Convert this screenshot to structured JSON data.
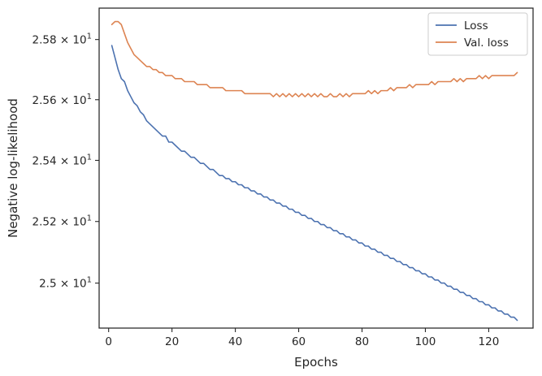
{
  "chart_data": {
    "type": "line",
    "xlabel": "Epochs",
    "ylabel": "Negative log-likelihood",
    "yscale": "log",
    "grid": false,
    "legend_position": "top-right",
    "xlim": [
      -3,
      134
    ],
    "ylim": [
      24.855,
      25.905
    ],
    "x_ticks": [
      0,
      20,
      40,
      60,
      80,
      100,
      120
    ],
    "y_ticks": [
      {
        "value": 25.0,
        "mantissa": "2.5",
        "exp": "1",
        "label": "2.5 × 10^1"
      },
      {
        "value": 25.2,
        "mantissa": "2.52",
        "exp": "1",
        "label": "2.52 × 10^1"
      },
      {
        "value": 25.4,
        "mantissa": "2.54",
        "exp": "1",
        "label": "2.54 × 10^1"
      },
      {
        "value": 25.6,
        "mantissa": "2.56",
        "exp": "1",
        "label": "2.56 × 10^1"
      },
      {
        "value": 25.8,
        "mantissa": "2.58",
        "exp": "1",
        "label": "2.58 × 10^1"
      }
    ],
    "x": [
      1,
      2,
      3,
      4,
      5,
      6,
      7,
      8,
      9,
      10,
      11,
      12,
      13,
      14,
      15,
      16,
      17,
      18,
      19,
      20,
      21,
      22,
      23,
      24,
      25,
      26,
      27,
      28,
      29,
      30,
      31,
      32,
      33,
      34,
      35,
      36,
      37,
      38,
      39,
      40,
      41,
      42,
      43,
      44,
      45,
      46,
      47,
      48,
      49,
      50,
      51,
      52,
      53,
      54,
      55,
      56,
      57,
      58,
      59,
      60,
      61,
      62,
      63,
      64,
      65,
      66,
      67,
      68,
      69,
      70,
      71,
      72,
      73,
      74,
      75,
      76,
      77,
      78,
      79,
      80,
      81,
      82,
      83,
      84,
      85,
      86,
      87,
      88,
      89,
      90,
      91,
      92,
      93,
      94,
      95,
      96,
      97,
      98,
      99,
      100,
      101,
      102,
      103,
      104,
      105,
      106,
      107,
      108,
      109,
      110,
      111,
      112,
      113,
      114,
      115,
      116,
      117,
      118,
      119,
      120,
      121,
      122,
      123,
      124,
      125,
      126,
      127,
      128,
      129
    ],
    "series": [
      {
        "name": "Loss",
        "color": "#4c72b0",
        "values": [
          25.78,
          25.74,
          25.7,
          25.67,
          25.66,
          25.63,
          25.61,
          25.59,
          25.58,
          25.56,
          25.55,
          25.53,
          25.52,
          25.51,
          25.5,
          25.49,
          25.48,
          25.48,
          25.46,
          25.46,
          25.45,
          25.44,
          25.43,
          25.43,
          25.42,
          25.41,
          25.41,
          25.4,
          25.39,
          25.39,
          25.38,
          25.37,
          25.37,
          25.36,
          25.35,
          25.35,
          25.34,
          25.34,
          25.33,
          25.33,
          25.32,
          25.32,
          25.31,
          25.31,
          25.3,
          25.3,
          25.29,
          25.29,
          25.28,
          25.28,
          25.27,
          25.27,
          25.26,
          25.26,
          25.25,
          25.25,
          25.24,
          25.24,
          25.23,
          25.23,
          25.22,
          25.22,
          25.21,
          25.21,
          25.2,
          25.2,
          25.19,
          25.19,
          25.18,
          25.18,
          25.17,
          25.17,
          25.16,
          25.16,
          25.15,
          25.15,
          25.14,
          25.14,
          25.13,
          25.13,
          25.12,
          25.12,
          25.11,
          25.11,
          25.1,
          25.1,
          25.09,
          25.09,
          25.08,
          25.08,
          25.07,
          25.07,
          25.06,
          25.06,
          25.05,
          25.05,
          25.04,
          25.04,
          25.03,
          25.03,
          25.02,
          25.02,
          25.01,
          25.01,
          25.0,
          25.0,
          24.99,
          24.99,
          24.98,
          24.98,
          24.97,
          24.97,
          24.96,
          24.96,
          24.95,
          24.95,
          24.94,
          24.94,
          24.93,
          24.93,
          24.92,
          24.92,
          24.91,
          24.91,
          24.9,
          24.9,
          24.89,
          24.89,
          24.88
        ]
      },
      {
        "name": "Val. loss",
        "color": "#dd8452",
        "values": [
          25.85,
          25.86,
          25.86,
          25.85,
          25.82,
          25.79,
          25.77,
          25.75,
          25.74,
          25.73,
          25.72,
          25.71,
          25.71,
          25.7,
          25.7,
          25.69,
          25.69,
          25.68,
          25.68,
          25.68,
          25.67,
          25.67,
          25.67,
          25.66,
          25.66,
          25.66,
          25.66,
          25.65,
          25.65,
          25.65,
          25.65,
          25.64,
          25.64,
          25.64,
          25.64,
          25.64,
          25.63,
          25.63,
          25.63,
          25.63,
          25.63,
          25.63,
          25.62,
          25.62,
          25.62,
          25.62,
          25.62,
          25.62,
          25.62,
          25.62,
          25.62,
          25.61,
          25.62,
          25.61,
          25.62,
          25.61,
          25.62,
          25.61,
          25.62,
          25.61,
          25.62,
          25.61,
          25.62,
          25.61,
          25.62,
          25.61,
          25.62,
          25.61,
          25.61,
          25.62,
          25.61,
          25.61,
          25.62,
          25.61,
          25.62,
          25.61,
          25.62,
          25.62,
          25.62,
          25.62,
          25.62,
          25.63,
          25.62,
          25.63,
          25.62,
          25.63,
          25.63,
          25.63,
          25.64,
          25.63,
          25.64,
          25.64,
          25.64,
          25.64,
          25.65,
          25.64,
          25.65,
          25.65,
          25.65,
          25.65,
          25.65,
          25.66,
          25.65,
          25.66,
          25.66,
          25.66,
          25.66,
          25.66,
          25.67,
          25.66,
          25.67,
          25.66,
          25.67,
          25.67,
          25.67,
          25.67,
          25.68,
          25.67,
          25.68,
          25.67,
          25.68,
          25.68,
          25.68,
          25.68,
          25.68,
          25.68,
          25.68,
          25.68,
          25.69
        ]
      }
    ]
  }
}
